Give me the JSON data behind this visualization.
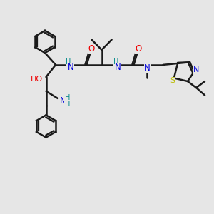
{
  "background_color": "#e6e6e6",
  "bond_color": "#1a1a1a",
  "bond_width": 1.8,
  "N_color": "#0000dd",
  "O_color": "#ee0000",
  "S_color": "#bbbb00",
  "H_color": "#008888",
  "C_color": "#1a1a1a",
  "figsize": [
    3.0,
    3.0
  ],
  "dpi": 100,
  "xlim": [
    0,
    10
  ],
  "ylim": [
    0,
    10
  ]
}
